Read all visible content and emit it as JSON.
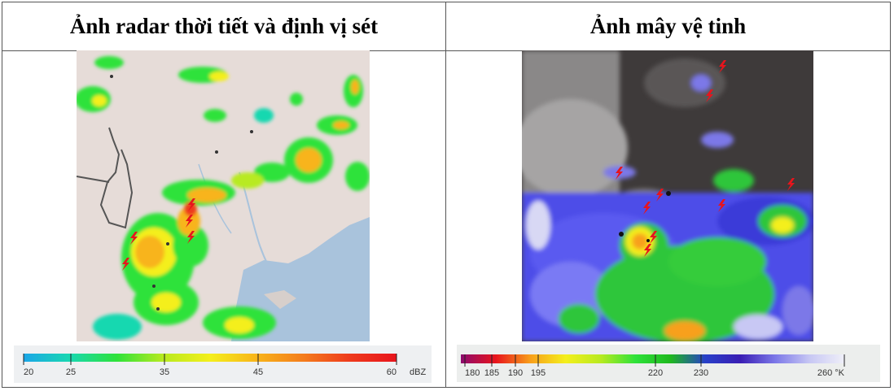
{
  "panels": {
    "radar": {
      "title": "Ảnh radar thời tiết và định vị sét",
      "scale": {
        "ticks": [
          "20",
          "25",
          "35",
          "45",
          "60"
        ],
        "unit": "dBZ",
        "colors": [
          "#1aa6e8",
          "#19d8b0",
          "#2ee23a",
          "#b8ea20",
          "#f4ef1c",
          "#f8b41a",
          "#f47c1c",
          "#ee3a1c",
          "#e8141c"
        ]
      }
    },
    "satellite": {
      "title": "Ảnh mây vệ tinh",
      "scale": {
        "ticks": [
          "180",
          "185",
          "190",
          "195",
          "220",
          "230",
          "260 °K"
        ],
        "colors": [
          "#8c0a6e",
          "#e8141c",
          "#f8a01a",
          "#f4ef1c",
          "#b8ea20",
          "#2ee23a",
          "#1fb81e",
          "#2840c8",
          "#3a1eb4",
          "#7c78e8",
          "#c8c8f4",
          "#f0f0f8"
        ]
      }
    }
  }
}
